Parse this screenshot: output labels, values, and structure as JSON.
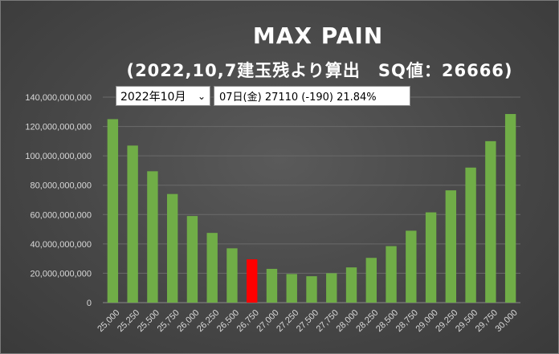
{
  "header": {
    "title": "MAX PAIN",
    "subtitle": "(2022,10,7建玉残より算出　SQ値：26666)"
  },
  "controls": {
    "month_select": "2022年10月",
    "info_text": "07日(金) 27110 (-190) 21.84%"
  },
  "colors": {
    "bar": "#70ad47",
    "highlight": "#ff0000",
    "grid": "#6a6a6a"
  },
  "chart_data": {
    "type": "bar",
    "title": "MAX PAIN",
    "subtitle": "(2022,10,7建玉残より算出　SQ値：26666)",
    "categories": [
      "25,000",
      "25,250",
      "25,500",
      "25,750",
      "26,000",
      "26,250",
      "26,500",
      "26,750",
      "27,000",
      "27,250",
      "27,500",
      "27,750",
      "28,000",
      "28,250",
      "28,500",
      "28,750",
      "29,000",
      "29,250",
      "29,500",
      "29,750",
      "30,000"
    ],
    "values": [
      125000000000,
      107000000000,
      89500000000,
      74000000000,
      59000000000,
      47500000000,
      37000000000,
      29500000000,
      23000000000,
      19500000000,
      18000000000,
      20000000000,
      24000000000,
      30500000000,
      38500000000,
      49000000000,
      61500000000,
      76500000000,
      92000000000,
      110000000000,
      128500000000
    ],
    "highlight_category": "26,750",
    "ylim": [
      0,
      140000000000
    ],
    "yticks": [
      "0",
      "20,000,000,000",
      "40,000,000,000",
      "60,000,000,000",
      "80,000,000,000",
      "100,000,000,000",
      "120,000,000,000",
      "140,000,000,000"
    ],
    "grid": true,
    "legend": "none"
  }
}
